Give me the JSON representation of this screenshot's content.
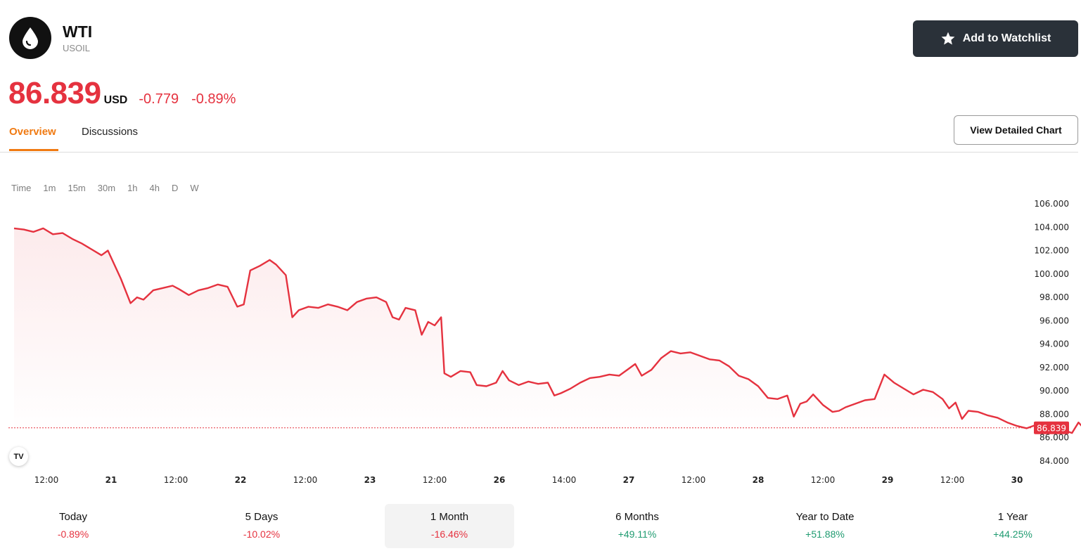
{
  "instrument": {
    "name": "WTI",
    "symbol": "USOIL",
    "icon": "oil-drop-icon"
  },
  "watchlist_button": {
    "label": "Add to Watchlist",
    "icon": "star-icon"
  },
  "quote": {
    "price": "86.839",
    "currency": "USD",
    "change": "-0.779",
    "change_pct": "-0.89%"
  },
  "tabs": [
    {
      "label": "Overview",
      "active": true
    },
    {
      "label": "Discussions",
      "active": false
    }
  ],
  "detail_chart_button": {
    "label": "View Detailed Chart"
  },
  "intervals": [
    "Time",
    "1m",
    "15m",
    "30m",
    "1h",
    "4h",
    "D",
    "W"
  ],
  "colors": {
    "down": "#e5323f",
    "up": "#1f9b70",
    "accent": "#f07a12",
    "button_dark": "#2a3139"
  },
  "chart_data": {
    "type": "area",
    "last_price_label": "86.839",
    "last_price": 86.839,
    "ylim": [
      84,
      106
    ],
    "y_ticks": [
      "84.000",
      "86.000",
      "88.000",
      "90.000",
      "92.000",
      "94.000",
      "96.000",
      "98.000",
      "100.000",
      "102.000",
      "104.000",
      "106.000"
    ],
    "x_ticks": [
      "12:00",
      "21",
      "12:00",
      "22",
      "12:00",
      "23",
      "12:00",
      "26",
      "14:00",
      "27",
      "12:00",
      "28",
      "12:00",
      "29",
      "12:00",
      "30"
    ],
    "x_range": [
      0,
      16.5
    ],
    "series": [
      {
        "points": [
          [
            -0.5,
            103.9
          ],
          [
            -0.35,
            103.8
          ],
          [
            -0.2,
            103.6
          ],
          [
            -0.05,
            103.9
          ],
          [
            0.1,
            103.4
          ],
          [
            0.25,
            103.5
          ],
          [
            0.4,
            103.0
          ],
          [
            0.55,
            102.6
          ],
          [
            0.7,
            102.1
          ],
          [
            0.85,
            101.6
          ],
          [
            0.95,
            102.0
          ],
          [
            1.05,
            100.8
          ],
          [
            1.15,
            99.6
          ],
          [
            1.3,
            97.5
          ],
          [
            1.4,
            98.0
          ],
          [
            1.5,
            97.8
          ],
          [
            1.65,
            98.6
          ],
          [
            1.8,
            98.8
          ],
          [
            1.95,
            99.0
          ],
          [
            2.05,
            98.7
          ],
          [
            2.2,
            98.2
          ],
          [
            2.35,
            98.6
          ],
          [
            2.5,
            98.8
          ],
          [
            2.65,
            99.1
          ],
          [
            2.8,
            98.9
          ],
          [
            2.95,
            97.2
          ],
          [
            3.05,
            97.4
          ],
          [
            3.15,
            100.3
          ],
          [
            3.3,
            100.7
          ],
          [
            3.45,
            101.2
          ],
          [
            3.55,
            100.8
          ],
          [
            3.7,
            99.9
          ],
          [
            3.8,
            96.3
          ],
          [
            3.9,
            96.9
          ],
          [
            4.05,
            97.2
          ],
          [
            4.2,
            97.1
          ],
          [
            4.35,
            97.4
          ],
          [
            4.5,
            97.2
          ],
          [
            4.65,
            96.9
          ],
          [
            4.8,
            97.6
          ],
          [
            4.95,
            97.9
          ],
          [
            5.1,
            98.0
          ],
          [
            5.25,
            97.6
          ],
          [
            5.35,
            96.3
          ],
          [
            5.45,
            96.1
          ],
          [
            5.55,
            97.1
          ],
          [
            5.7,
            96.9
          ],
          [
            5.8,
            94.8
          ],
          [
            5.9,
            95.9
          ],
          [
            6.0,
            95.6
          ],
          [
            6.1,
            96.3
          ],
          [
            6.15,
            91.5
          ],
          [
            6.25,
            91.2
          ],
          [
            6.4,
            91.7
          ],
          [
            6.55,
            91.6
          ],
          [
            6.65,
            90.5
          ],
          [
            6.8,
            90.4
          ],
          [
            6.95,
            90.7
          ],
          [
            7.05,
            91.7
          ],
          [
            7.15,
            90.9
          ],
          [
            7.3,
            90.5
          ],
          [
            7.45,
            90.8
          ],
          [
            7.6,
            90.6
          ],
          [
            7.75,
            90.7
          ],
          [
            7.85,
            89.6
          ],
          [
            7.95,
            89.8
          ],
          [
            8.1,
            90.2
          ],
          [
            8.25,
            90.7
          ],
          [
            8.4,
            91.1
          ],
          [
            8.55,
            91.2
          ],
          [
            8.7,
            91.4
          ],
          [
            8.85,
            91.3
          ],
          [
            9.0,
            91.9
          ],
          [
            9.1,
            92.3
          ],
          [
            9.2,
            91.3
          ],
          [
            9.35,
            91.8
          ],
          [
            9.5,
            92.8
          ],
          [
            9.65,
            93.4
          ],
          [
            9.8,
            93.2
          ],
          [
            9.95,
            93.3
          ],
          [
            10.1,
            93.0
          ],
          [
            10.25,
            92.7
          ],
          [
            10.4,
            92.6
          ],
          [
            10.55,
            92.1
          ],
          [
            10.7,
            91.3
          ],
          [
            10.85,
            91.0
          ],
          [
            11.0,
            90.4
          ],
          [
            11.15,
            89.4
          ],
          [
            11.3,
            89.3
          ],
          [
            11.45,
            89.6
          ],
          [
            11.55,
            87.8
          ],
          [
            11.65,
            88.9
          ],
          [
            11.75,
            89.1
          ],
          [
            11.85,
            89.7
          ],
          [
            12.0,
            88.8
          ],
          [
            12.15,
            88.2
          ],
          [
            12.25,
            88.3
          ],
          [
            12.35,
            88.6
          ],
          [
            12.5,
            88.9
          ],
          [
            12.65,
            89.2
          ],
          [
            12.8,
            89.3
          ],
          [
            12.95,
            91.4
          ],
          [
            13.1,
            90.7
          ],
          [
            13.25,
            90.2
          ],
          [
            13.4,
            89.7
          ],
          [
            13.55,
            90.1
          ],
          [
            13.7,
            89.9
          ],
          [
            13.85,
            89.3
          ],
          [
            13.95,
            88.5
          ],
          [
            14.05,
            89.0
          ],
          [
            14.15,
            87.6
          ],
          [
            14.25,
            88.3
          ],
          [
            14.4,
            88.2
          ],
          [
            14.55,
            87.9
          ],
          [
            14.7,
            87.7
          ],
          [
            14.85,
            87.3
          ],
          [
            15.0,
            87.0
          ],
          [
            15.15,
            86.8
          ],
          [
            15.3,
            87.1
          ],
          [
            15.45,
            86.9
          ],
          [
            15.55,
            86.5
          ],
          [
            15.7,
            86.7
          ],
          [
            15.85,
            86.4
          ],
          [
            15.95,
            87.3
          ],
          [
            16.05,
            86.7
          ],
          [
            16.2,
            86.3
          ],
          [
            16.35,
            86.6
          ],
          [
            16.45,
            86.9
          ]
        ]
      }
    ]
  },
  "performance": [
    {
      "label": "Today",
      "value": "-0.89%",
      "direction": "neg",
      "selected": false
    },
    {
      "label": "5 Days",
      "value": "-10.02%",
      "direction": "neg",
      "selected": false
    },
    {
      "label": "1 Month",
      "value": "-16.46%",
      "direction": "neg",
      "selected": true
    },
    {
      "label": "6 Months",
      "value": "+49.11%",
      "direction": "pos",
      "selected": false
    },
    {
      "label": "Year to Date",
      "value": "+51.88%",
      "direction": "pos",
      "selected": false
    },
    {
      "label": "1 Year",
      "value": "+44.25%",
      "direction": "pos",
      "selected": false
    }
  ]
}
